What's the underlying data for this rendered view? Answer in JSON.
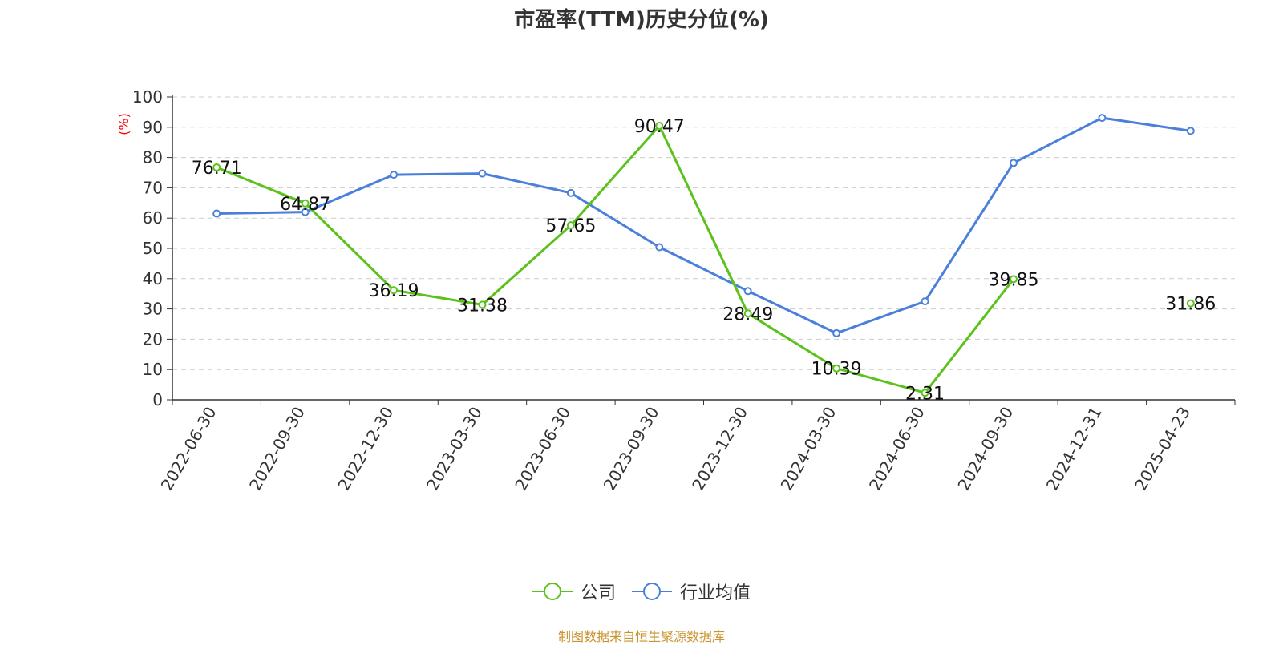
{
  "colors": {
    "company": "#5ac21a",
    "industry": "#4a7fdc",
    "axis": "#333333",
    "grid": "#cccccc",
    "unit": "#ff0000",
    "source": "#c8932d"
  },
  "chart_data": {
    "type": "line",
    "title": "市盈率(TTM)历史分位(%)",
    "ylabel": "(%)",
    "ylim": [
      0,
      100
    ],
    "yticks": [
      0,
      10,
      20,
      30,
      40,
      50,
      60,
      70,
      80,
      90,
      100
    ],
    "categories": [
      "2022-06-30",
      "2022-09-30",
      "2022-12-30",
      "2023-03-30",
      "2023-06-30",
      "2023-09-30",
      "2023-12-30",
      "2024-03-30",
      "2024-06-30",
      "2024-09-30",
      "2024-12-31",
      "2025-04-23"
    ],
    "grid": true,
    "legend_position": "bottom",
    "series": [
      {
        "name": "公司",
        "color": "#5ac21a",
        "values": [
          76.71,
          64.87,
          36.19,
          31.38,
          57.65,
          90.47,
          28.49,
          10.39,
          2.31,
          39.85,
          null,
          31.86
        ],
        "labels": [
          "76.71",
          "64.87",
          "36.19",
          "31.38",
          "57.65",
          "90.47",
          "28.49",
          "10.39",
          "2.31",
          "39.85",
          "",
          "31.86"
        ]
      },
      {
        "name": "行业均值",
        "color": "#4a7fdc",
        "values": [
          61.5,
          62.0,
          74.3,
          74.7,
          68.3,
          50.4,
          35.9,
          22.0,
          32.5,
          78.2,
          93.1,
          88.8
        ]
      }
    ]
  },
  "legend": {
    "company_label": "公司",
    "industry_label": "行业均值"
  },
  "source": "制图数据来自恒生聚源数据库"
}
